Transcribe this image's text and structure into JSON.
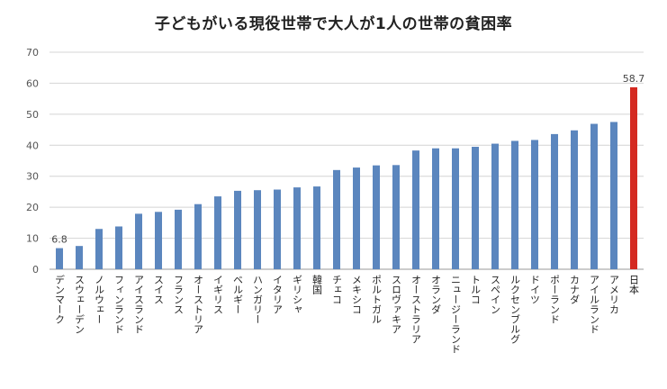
{
  "chart_data": {
    "type": "bar",
    "title": "子どもがいる現役世帯で大人が1人の世帯の貧困率",
    "xlabel": "",
    "ylabel": "",
    "ylim": [
      0,
      70
    ],
    "yticks": [
      0,
      10,
      20,
      30,
      40,
      50,
      60,
      70
    ],
    "grid": true,
    "categories": [
      "デンマーク",
      "スウェーデン",
      "ノルウェー",
      "フィンランド",
      "アイスランド",
      "スイス",
      "フランス",
      "オーストリア",
      "イギリス",
      "ベルギー",
      "ハンガリー",
      "イタリア",
      "ギリシャ",
      "韓国",
      "チェコ",
      "メキシコ",
      "ポルトガル",
      "スロヴァキア",
      "オーストラリア",
      "オランダ",
      "ニュージーランド",
      "トルコ",
      "スペイン",
      "ルクセンブルグ",
      "ドイツ",
      "ポーランド",
      "カナダ",
      "アイルランド",
      "アメリカ",
      "日本"
    ],
    "values": [
      6.8,
      7.5,
      13.0,
      13.8,
      17.9,
      18.5,
      19.2,
      21.0,
      23.5,
      25.3,
      25.5,
      25.7,
      26.4,
      26.7,
      32.0,
      32.8,
      33.5,
      33.6,
      38.3,
      39.0,
      39.0,
      39.5,
      40.5,
      41.4,
      41.7,
      43.6,
      44.8,
      46.9,
      47.5,
      58.7
    ],
    "data_labels": [
      {
        "category": "デンマーク",
        "text": "6.8"
      },
      {
        "category": "日本",
        "text": "58.7"
      }
    ],
    "colors": {
      "bar": "#5b86be",
      "highlight": "#d42a21",
      "highlight_category": "日本",
      "grid": "#d4d4d4"
    }
  }
}
